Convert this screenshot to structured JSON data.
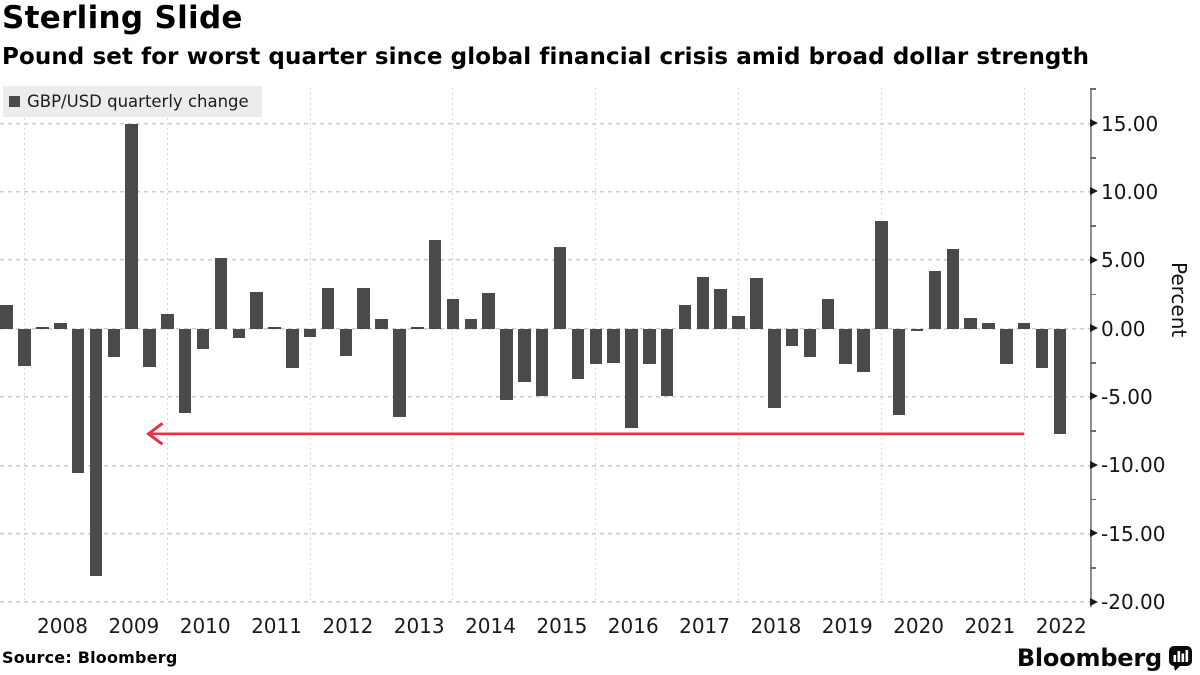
{
  "chart_data": {
    "type": "bar",
    "title": "Sterling Slide",
    "subtitle": "Pound set for worst quarter since global financial crisis amid broad dollar strength",
    "legend_label": "GBP/USD quarterly change",
    "ylabel": "Percent",
    "source": "Source: Bloomberg",
    "brand": "Bloomberg",
    "ylim": [
      -20,
      17.6
    ],
    "grid": "on",
    "legend_position": "top-left",
    "bar_color": "#4a4a4d",
    "y_ticks": [
      {
        "value": 15,
        "label": "15.00"
      },
      {
        "value": 10,
        "label": "10.00"
      },
      {
        "value": 5,
        "label": "5.00"
      },
      {
        "value": 0,
        "label": "0.00"
      },
      {
        "value": -5,
        "label": "-5.00"
      },
      {
        "value": -10,
        "label": "-10.00"
      },
      {
        "value": -15,
        "label": "-15.00"
      },
      {
        "value": -20,
        "label": "-20.00"
      }
    ],
    "y_ticks_minor": [
      17.5,
      12.5,
      7.5,
      2.5,
      -2.5,
      -7.5,
      -12.5,
      -17.5
    ],
    "x_year_labels": [
      "2008",
      "2009",
      "2010",
      "2011",
      "2012",
      "2013",
      "2014",
      "2015",
      "2016",
      "2017",
      "2018",
      "2019",
      "2020",
      "2021",
      "2022"
    ],
    "categories": [
      "2007 Q3",
      "2007 Q4",
      "2008 Q1",
      "2008 Q2",
      "2008 Q3",
      "2008 Q4",
      "2009 Q1",
      "2009 Q2",
      "2009 Q3",
      "2009 Q4",
      "2010 Q1",
      "2010 Q2",
      "2010 Q3",
      "2010 Q4",
      "2011 Q1",
      "2011 Q2",
      "2011 Q3",
      "2011 Q4",
      "2012 Q1",
      "2012 Q2",
      "2012 Q3",
      "2012 Q4",
      "2013 Q1",
      "2013 Q2",
      "2013 Q3",
      "2013 Q4",
      "2014 Q1",
      "2014 Q2",
      "2014 Q3",
      "2014 Q4",
      "2015 Q1",
      "2015 Q2",
      "2015 Q3",
      "2015 Q4",
      "2016 Q1",
      "2016 Q2",
      "2016 Q3",
      "2016 Q4",
      "2017 Q1",
      "2017 Q2",
      "2017 Q3",
      "2017 Q4",
      "2018 Q1",
      "2018 Q2",
      "2018 Q3",
      "2018 Q4",
      "2019 Q1",
      "2019 Q2",
      "2019 Q3",
      "2019 Q4",
      "2020 Q1",
      "2020 Q2",
      "2020 Q3",
      "2020 Q4",
      "2021 Q1",
      "2021 Q2",
      "2021 Q3",
      "2021 Q4",
      "2022 Q1",
      "2022 Q2"
    ],
    "values": [
      1.7,
      -2.7,
      0.1,
      0.4,
      -10.6,
      -18.1,
      -2.1,
      15.0,
      -2.8,
      1.1,
      -6.2,
      -1.5,
      5.2,
      -0.7,
      2.7,
      0.1,
      -2.9,
      -0.6,
      3.0,
      -2.0,
      3.0,
      0.7,
      -6.5,
      0.1,
      6.5,
      2.2,
      0.7,
      2.6,
      -5.2,
      -3.9,
      -4.9,
      6.0,
      -3.7,
      -2.6,
      -2.5,
      -7.3,
      -2.6,
      -4.9,
      1.7,
      3.8,
      2.9,
      0.9,
      3.7,
      -5.8,
      -1.3,
      -2.1,
      2.2,
      -2.6,
      -3.2,
      7.9,
      -6.3,
      -0.2,
      4.2,
      5.8,
      0.8,
      0.4,
      -2.6,
      0.4,
      -2.9,
      -7.7
    ],
    "annotation_arrow": {
      "y": -7.7,
      "tip_quarter": "2009 Q3",
      "tail_quarter": "2021 Q4",
      "color": "#e8304c",
      "direction": "left"
    },
    "vertical_gridline_quarters": [
      "2007 Q4",
      "2009 Q4",
      "2011 Q4",
      "2013 Q4",
      "2015 Q4",
      "2017 Q4",
      "2019 Q4",
      "2021 Q4"
    ]
  }
}
